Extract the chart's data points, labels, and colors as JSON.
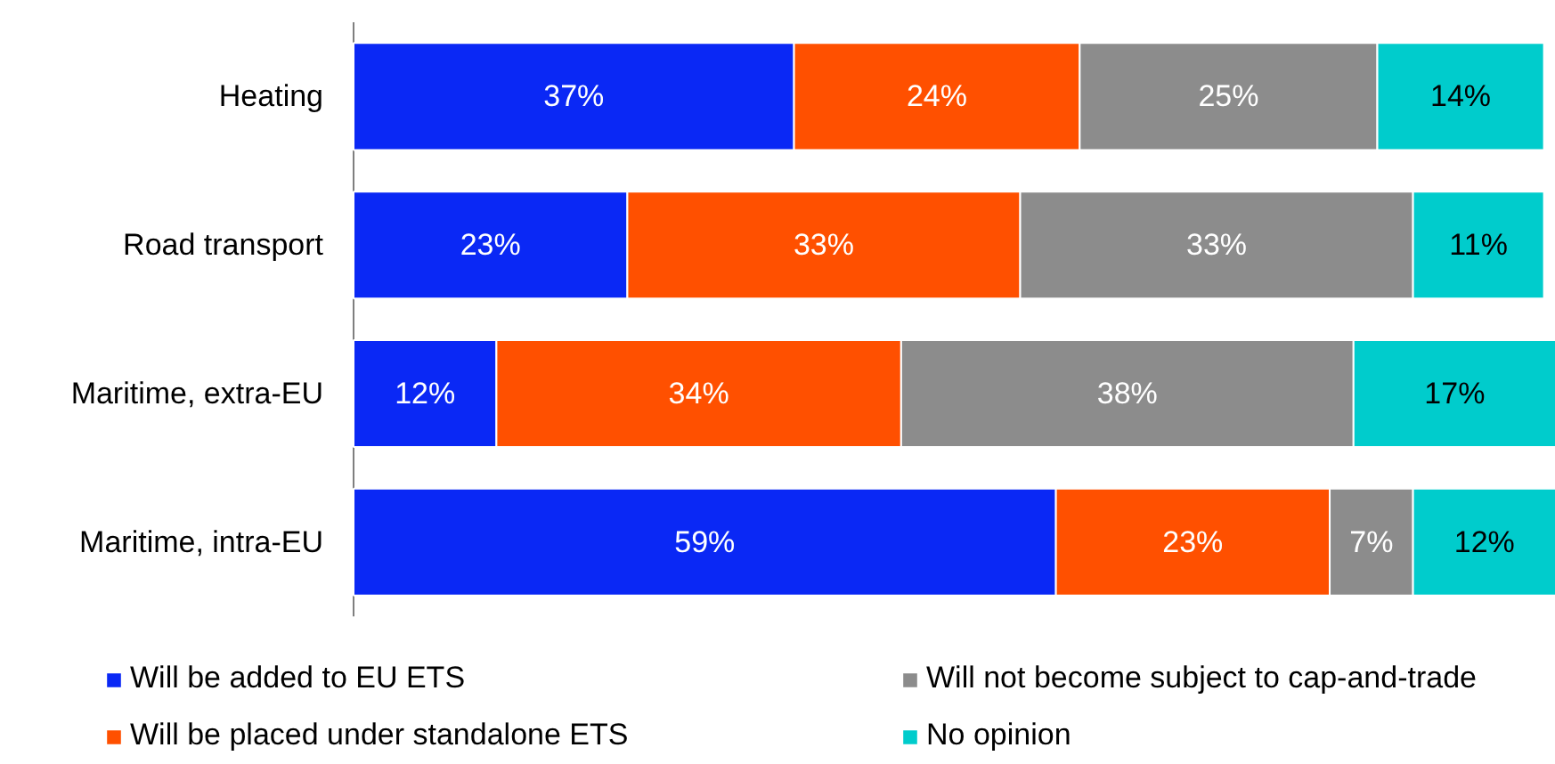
{
  "chart_data": {
    "type": "bar",
    "orientation": "horizontal",
    "stacked": true,
    "data_labels": true,
    "legend": "bottom",
    "grid": false,
    "tick_labels": "y",
    "categories": [
      "Heating",
      "Road transport",
      "Maritime, extra-EU",
      "Maritime, intra-EU"
    ],
    "series": [
      {
        "name": "Will be added to EU ETS",
        "color": "#0a28f5",
        "values": [
          37,
          23,
          12,
          59
        ],
        "value_labels": [
          "37%",
          "23%",
          "12%",
          "59%"
        ]
      },
      {
        "name": "Will be placed under standalone ETS",
        "color": "#ff5000",
        "values": [
          24,
          33,
          34,
          23
        ],
        "value_labels": [
          "24%",
          "33%",
          "34%",
          "23%"
        ]
      },
      {
        "name": "Will not become subject to cap-and-trade",
        "color": "#8c8c8c",
        "values": [
          25,
          33,
          38,
          7
        ],
        "value_labels": [
          "25%",
          "33%",
          "38%",
          "7%"
        ]
      },
      {
        "name": "No opinion",
        "color": "#00cccc",
        "values": [
          14,
          11,
          17,
          12
        ],
        "value_labels": [
          "14%",
          "11%",
          "17%",
          "12%"
        ]
      }
    ]
  }
}
